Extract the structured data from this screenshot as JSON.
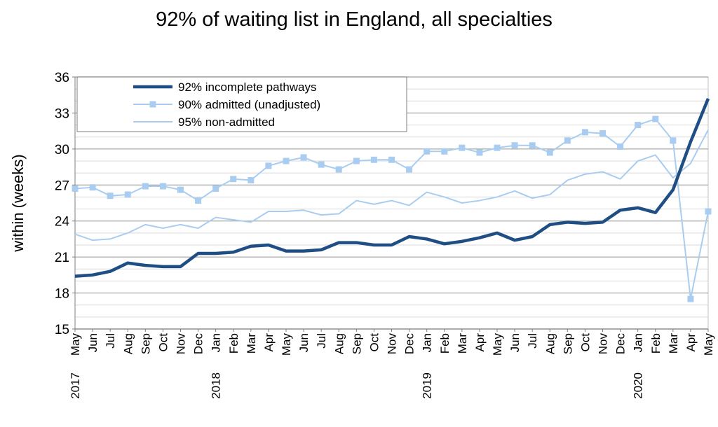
{
  "chart_data": {
    "type": "line",
    "title": "92% of waiting list in England, all specialties",
    "xlabel": "",
    "ylabel": "within  (weeks)",
    "ylim": [
      15,
      36
    ],
    "yticks": [
      15,
      18,
      21,
      24,
      27,
      30,
      33,
      36
    ],
    "grid": true,
    "legend_position": "top-left",
    "categories": [
      "May",
      "Jun",
      "Jul",
      "Aug",
      "Sep",
      "Oct",
      "Nov",
      "Dec",
      "Jan",
      "Feb",
      "Mar",
      "Apr",
      "May",
      "Jun",
      "Jul",
      "Aug",
      "Sep",
      "Oct",
      "Nov",
      "Dec",
      "Jan",
      "Feb",
      "Mar",
      "Apr",
      "May",
      "Jun",
      "Jul",
      "Aug",
      "Sep",
      "Oct",
      "Nov",
      "Dec",
      "Jan",
      "Feb",
      "Mar",
      "Apr",
      "May"
    ],
    "year_labels": [
      {
        "index": 0,
        "label": "2017"
      },
      {
        "index": 8,
        "label": "2018"
      },
      {
        "index": 20,
        "label": "2019"
      },
      {
        "index": 32,
        "label": "2020"
      }
    ],
    "series": [
      {
        "name": "92% incomplete pathways",
        "color": "#1f4e84",
        "marker": "none",
        "values": [
          19.4,
          19.5,
          19.8,
          20.5,
          20.3,
          20.2,
          20.2,
          21.3,
          21.3,
          21.4,
          21.9,
          22.0,
          21.5,
          21.5,
          21.6,
          22.2,
          22.2,
          22.0,
          22.0,
          22.7,
          22.5,
          22.1,
          22.3,
          22.6,
          23.0,
          22.4,
          22.7,
          23.7,
          23.9,
          23.8,
          23.9,
          24.9,
          25.1,
          24.7,
          26.6,
          30.6,
          34.2
        ]
      },
      {
        "name": "90% admitted (unadjusted)",
        "color": "#a9cdf0",
        "marker": "square",
        "values": [
          26.7,
          26.8,
          26.1,
          26.2,
          26.9,
          26.9,
          26.6,
          25.7,
          26.7,
          27.5,
          27.4,
          28.6,
          29.0,
          29.3,
          28.7,
          28.3,
          29.0,
          29.1,
          29.1,
          28.3,
          29.8,
          29.8,
          30.1,
          29.7,
          30.1,
          30.3,
          30.3,
          29.7,
          30.7,
          31.4,
          31.3,
          30.2,
          32.0,
          32.5,
          30.7,
          17.5,
          24.8
        ]
      },
      {
        "name": "95% non-admitted",
        "color": "#a9cdf0",
        "marker": "none",
        "values": [
          22.9,
          22.4,
          22.5,
          23.0,
          23.7,
          23.4,
          23.7,
          23.4,
          24.3,
          24.1,
          23.9,
          24.8,
          24.8,
          24.9,
          24.5,
          24.6,
          25.7,
          25.4,
          25.7,
          25.3,
          26.4,
          26.0,
          25.5,
          25.7,
          26.0,
          26.5,
          25.9,
          26.2,
          27.4,
          27.9,
          28.1,
          27.5,
          29.0,
          29.5,
          27.6,
          28.8,
          31.6
        ]
      }
    ]
  }
}
